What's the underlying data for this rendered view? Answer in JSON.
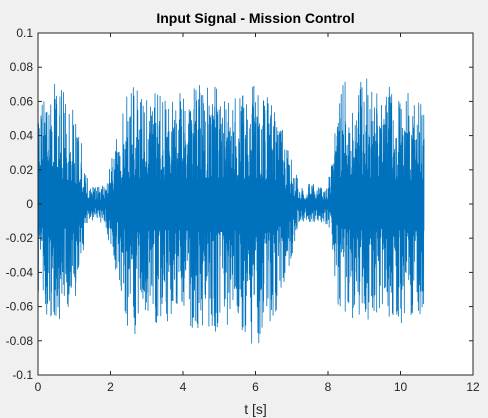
{
  "chart_data": {
    "type": "line",
    "title": "Input Signal - Mission Control",
    "xlabel": "t [s]",
    "ylabel": "",
    "xlim": [
      0,
      12
    ],
    "ylim": [
      -0.1,
      0.1
    ],
    "x_ticks": [
      0,
      2,
      4,
      6,
      8,
      10,
      12
    ],
    "x_tick_labels": [
      "0",
      "2",
      "4",
      "6",
      "8",
      "10",
      "12"
    ],
    "y_ticks": [
      -0.1,
      -0.08,
      -0.06,
      -0.04,
      -0.02,
      0,
      0.02,
      0.04,
      0.06,
      0.08,
      0.1
    ],
    "y_tick_labels": [
      "-0.1",
      "-0.08",
      "-0.06",
      "-0.04",
      "-0.02",
      "0",
      "0.02",
      "0.04",
      "0.06",
      "0.08",
      "0.1"
    ],
    "grid": false,
    "legend": "none",
    "series": [
      {
        "color": "#0072BD",
        "x": [
          0.0,
          0.5,
          1.0,
          1.4,
          1.85,
          2.5,
          3.0,
          3.5,
          4.0,
          4.5,
          5.0,
          5.5,
          6.0,
          6.5,
          6.8,
          7.2,
          7.6,
          8.0,
          8.3,
          8.8,
          9.2,
          9.6,
          10.0,
          10.3,
          10.65
        ],
        "upper": [
          0.06,
          0.072,
          0.06,
          0.011,
          0.012,
          0.07,
          0.07,
          0.065,
          0.065,
          0.07,
          0.07,
          0.065,
          0.07,
          0.06,
          0.04,
          0.012,
          0.012,
          0.012,
          0.065,
          0.085,
          0.07,
          0.07,
          0.065,
          0.065,
          0.06
        ],
        "lower": [
          -0.06,
          -0.07,
          -0.06,
          -0.01,
          -0.012,
          -0.08,
          -0.07,
          -0.07,
          -0.07,
          -0.075,
          -0.075,
          -0.07,
          -0.088,
          -0.07,
          -0.05,
          -0.011,
          -0.011,
          -0.012,
          -0.065,
          -0.07,
          -0.07,
          -0.065,
          -0.07,
          -0.065,
          -0.065
        ]
      }
    ]
  }
}
